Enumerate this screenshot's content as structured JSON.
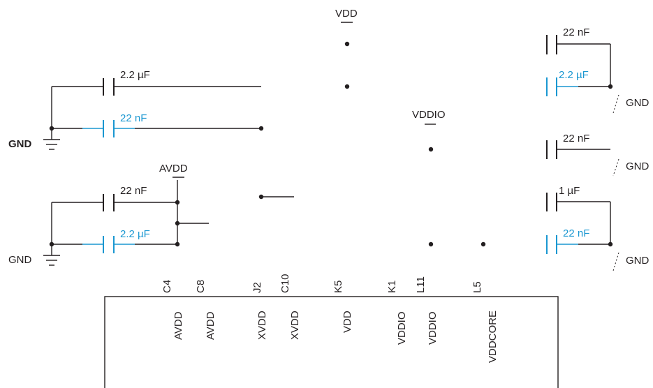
{
  "rails": {
    "vdd": "VDD",
    "vddio": "VDDIO",
    "avdd": "AVDD"
  },
  "grounds": {
    "left_top": "GND",
    "left_bottom": "GND",
    "right_1": "GND",
    "right_2": "GND",
    "right_3": "GND"
  },
  "capacitors": {
    "left_1": "2.2 µF",
    "left_2": "22 nF",
    "left_3": "22 nF",
    "left_4": "2.2 µF",
    "right_1": "22 nF",
    "right_2": "2.2 µF",
    "right_3": "22 nF",
    "right_4": "1 µF",
    "right_5": "22 nF"
  },
  "pins": [
    {
      "ball": "C4",
      "name": "AVDD"
    },
    {
      "ball": "C8",
      "name": "AVDD"
    },
    {
      "ball": "J2",
      "name": "XVDD"
    },
    {
      "ball": "C10",
      "name": "XVDD"
    },
    {
      "ball": "K5",
      "name": "VDD"
    },
    {
      "ball": "K1",
      "name": "VDDIO"
    },
    {
      "ball": "L11",
      "name": "VDDIO"
    },
    {
      "ball": "L5",
      "name": "VDDCORE"
    }
  ],
  "colors": {
    "wire": "#231f20",
    "highlight": "#1a97d1"
  }
}
